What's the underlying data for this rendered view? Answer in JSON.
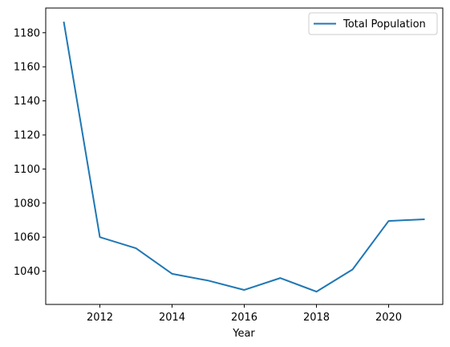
{
  "chart_data": {
    "type": "line",
    "title": "",
    "xlabel": "Year",
    "ylabel": "",
    "x": [
      2011,
      2012,
      2013,
      2014,
      2015,
      2016,
      2017,
      2018,
      2019,
      2020,
      2021
    ],
    "series": [
      {
        "name": "Total Population",
        "color": "#1f77b4",
        "values": [
          1186.5,
          1060,
          1053.5,
          1038.5,
          1034.5,
          1029,
          1036,
          1028,
          1041,
          1069.5,
          1070.5
        ]
      }
    ],
    "xticks": [
      2012,
      2014,
      2016,
      2018,
      2020
    ],
    "yticks": [
      1040,
      1060,
      1080,
      1100,
      1120,
      1140,
      1160,
      1180
    ],
    "xlim": [
      2010.5,
      2021.5
    ],
    "ylim": [
      1020.5,
      1194.5
    ],
    "grid": false,
    "legend_position": "top-right"
  }
}
